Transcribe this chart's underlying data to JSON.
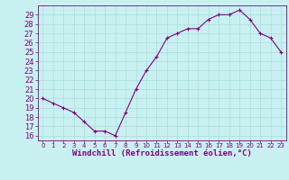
{
  "x": [
    0,
    1,
    2,
    3,
    4,
    5,
    6,
    7,
    8,
    9,
    10,
    11,
    12,
    13,
    14,
    15,
    16,
    17,
    18,
    19,
    20,
    21,
    22,
    23
  ],
  "y": [
    20,
    19.5,
    19,
    18.5,
    17.5,
    16.5,
    16.5,
    16,
    18.5,
    21,
    23,
    24.5,
    26.5,
    27,
    27.5,
    27.5,
    28.5,
    29,
    29,
    29.5,
    28.5,
    27,
    26.5,
    25
  ],
  "line_color": "#800080",
  "marker": "+",
  "marker_size": 3,
  "marker_linewidth": 0.8,
  "bg_color": "#c8f0f0",
  "grid_color": "#aadddd",
  "xlabel": "Windchill (Refroidissement éolien,°C)",
  "xlim": [
    -0.5,
    23.5
  ],
  "ylim": [
    15.5,
    30.0
  ],
  "yticks": [
    16,
    17,
    18,
    19,
    20,
    21,
    22,
    23,
    24,
    25,
    26,
    27,
    28,
    29
  ],
  "xtick_labels": [
    "0",
    "1",
    "2",
    "3",
    "4",
    "5",
    "6",
    "7",
    "8",
    "9",
    "10",
    "11",
    "12",
    "13",
    "14",
    "15",
    "16",
    "17",
    "18",
    "19",
    "20",
    "21",
    "22",
    "23"
  ],
  "tick_color": "#800080",
  "label_color": "#800080",
  "tick_fontsize": 6,
  "xlabel_fontsize": 6.5
}
